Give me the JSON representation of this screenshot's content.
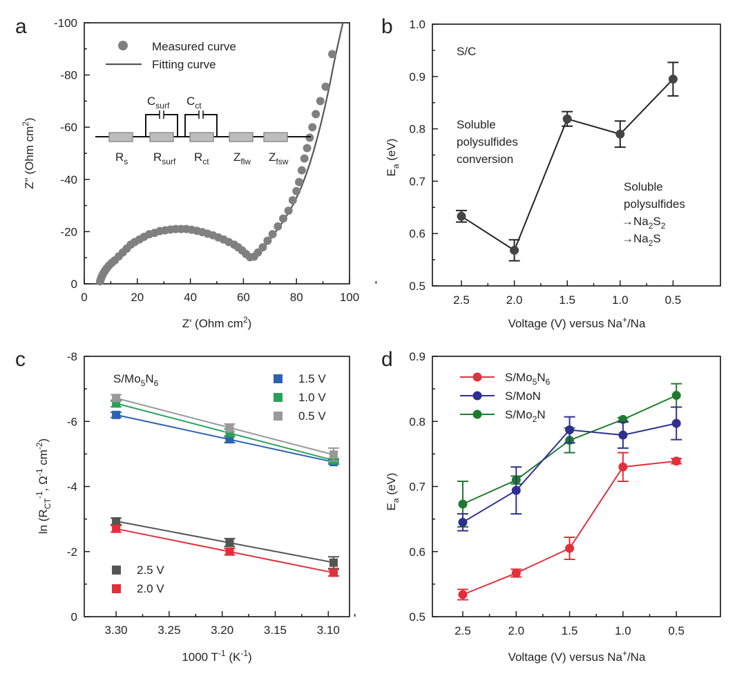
{
  "chart_data": [
    {
      "id": "a",
      "panel_label": "a",
      "type": "scatter",
      "xlabel": "Z' (Ohm cm2)",
      "ylabel": "Z\" (Ohm cm2)",
      "xlim": [
        0,
        100
      ],
      "ylim": [
        0,
        -100
      ],
      "xticks": [
        0,
        20,
        40,
        60,
        80,
        100
      ],
      "yticks": [
        0,
        -20,
        -40,
        -60,
        -80,
        -100
      ],
      "yticklabels": [
        "0",
        "-20",
        "-40",
        "-60",
        "-80",
        "-100"
      ],
      "legend": [
        "Measured curve",
        "Fitting curve"
      ],
      "colors": {
        "points": "#808080",
        "line": "#555555"
      },
      "circuit_labels": {
        "caps": [
          {
            "main": "C",
            "sub": "surf"
          },
          {
            "main": "C",
            "sub": "ct"
          }
        ],
        "elements": [
          {
            "main": "R",
            "sub": "s"
          },
          {
            "main": "R",
            "sub": "surf"
          },
          {
            "main": "R",
            "sub": "ct"
          },
          {
            "main": "Z",
            "sub": "flw"
          },
          {
            "main": "Z",
            "sub": "fsw"
          }
        ]
      },
      "series": [
        {
          "name": "Measured curve",
          "x": [
            6,
            6.3,
            6.7,
            7.2,
            7.8,
            8.5,
            9.3,
            10.3,
            11.5,
            13,
            14.5,
            16,
            17.5,
            19,
            20.8,
            22.5,
            24.5,
            26.5,
            28.5,
            30.5,
            32.5,
            34.5,
            36.5,
            38.5,
            40.5,
            42.5,
            44.5,
            46.5,
            48.5,
            50.5,
            52.5,
            54.5,
            56.5,
            58,
            59.5,
            61,
            62.5,
            64,
            65.5,
            67.3,
            69.1,
            71,
            73,
            75,
            77,
            78.6,
            80,
            81,
            82,
            83,
            84,
            85,
            86,
            87.3,
            89,
            91,
            93.5
          ],
          "y": [
            -1,
            -2,
            -3,
            -4,
            -5,
            -6,
            -7,
            -8,
            -9,
            -10.5,
            -12,
            -13.5,
            -15,
            -16,
            -17,
            -18,
            -19,
            -19.5,
            -20.2,
            -20.5,
            -20.8,
            -21,
            -21,
            -21,
            -20.7,
            -20.3,
            -19.8,
            -19.2,
            -18.6,
            -17.8,
            -17,
            -16,
            -15,
            -14,
            -12.8,
            -11.4,
            -10.2,
            -10.4,
            -12,
            -14,
            -16.5,
            -19,
            -22,
            -25,
            -28,
            -32,
            -35.5,
            -39,
            -43.5,
            -48,
            -52,
            -56,
            -60,
            -65,
            -70,
            -75.5,
            -88
          ]
        },
        {
          "name": "Fitting curve",
          "x": [
            5.5,
            6,
            7,
            8,
            9,
            10,
            12,
            14,
            16,
            18,
            20,
            22,
            24,
            26,
            28,
            30,
            32,
            34,
            36,
            38,
            40,
            42,
            44,
            46,
            48,
            50,
            52,
            54,
            56,
            58,
            60,
            61.5,
            62.8,
            64,
            65.5,
            67,
            69,
            71,
            73,
            75,
            77,
            79,
            80.5,
            82,
            83.5,
            85,
            86.5,
            88,
            89.5,
            91,
            92.5,
            94,
            95.5,
            97.5
          ],
          "y": [
            0,
            -1.5,
            -3,
            -4.5,
            -6,
            -7.5,
            -9.8,
            -11.8,
            -13.6,
            -15.2,
            -16.6,
            -17.8,
            -18.8,
            -19.6,
            -20.2,
            -20.6,
            -20.9,
            -21,
            -21,
            -20.9,
            -20.6,
            -20.2,
            -19.7,
            -19.1,
            -18.4,
            -17.6,
            -16.6,
            -15.5,
            -14.3,
            -12.9,
            -11.3,
            -10.2,
            -9.8,
            -10.3,
            -11.6,
            -13.2,
            -15.6,
            -18.2,
            -21,
            -24,
            -27.3,
            -30.8,
            -34,
            -37.5,
            -41.5,
            -46,
            -51,
            -56.5,
            -62.5,
            -69,
            -76,
            -84,
            -91,
            -100
          ]
        }
      ]
    },
    {
      "id": "b",
      "panel_label": "b",
      "type": "line",
      "xlabel": "Voltage (V) versus Na+/Na",
      "ylabel": "Ea (eV)",
      "categories": [
        "2.5",
        "2.0",
        "1.5",
        "1.0",
        "0.5"
      ],
      "ylim": [
        0.5,
        1.0
      ],
      "yticks": [
        0.5,
        0.6,
        0.7,
        0.8,
        0.9,
        1.0
      ],
      "yticklabels": [
        "0.5",
        "0.6",
        "0.7",
        "0.8",
        "0.9",
        "1.0"
      ],
      "sample_label": "S/C",
      "annotations": {
        "left": [
          "Soluble",
          "polysulfides",
          "conversion"
        ],
        "right": [
          "Soluble",
          "polysulfides"
        ],
        "products": [
          {
            "arrow": "→",
            "parts": [
              {
                "t": "Na"
              },
              {
                "t": "2",
                "sub": true
              },
              {
                "t": "S"
              },
              {
                "t": "2",
                "sub": true
              }
            ]
          },
          {
            "arrow": "→",
            "parts": [
              {
                "t": "Na"
              },
              {
                "t": "2",
                "sub": true
              },
              {
                "t": "S"
              }
            ]
          }
        ]
      },
      "colors": {
        "line": "#222222",
        "marker": "#444444"
      },
      "series": [
        {
          "name": "S/C",
          "values": [
            0.633,
            0.568,
            0.819,
            0.79,
            0.895
          ],
          "errors": [
            0.011,
            0.02,
            0.014,
            0.025,
            0.032
          ]
        }
      ]
    },
    {
      "id": "c",
      "panel_label": "c",
      "type": "scatter",
      "xlabel": "1000 T-1 (K-1)",
      "ylabel": "ln (RCT-1, Ω-1 cm-2)",
      "xlim": [
        3.33,
        3.08
      ],
      "ylim": [
        0,
        -8
      ],
      "xticks": [
        3.3,
        3.25,
        3.2,
        3.15,
        3.1
      ],
      "xticklabels": [
        "3.30",
        "3.25",
        "3.20",
        "3.15",
        "3.10"
      ],
      "yticks": [
        0,
        -2,
        -4,
        -6,
        -8
      ],
      "yticklabels": [
        "0",
        "-2",
        "-4",
        "-6",
        "-8"
      ],
      "sample_label": {
        "parts": [
          {
            "t": "S/Mo"
          },
          {
            "t": "5",
            "sub": true
          },
          {
            "t": "N"
          },
          {
            "t": "6",
            "sub": true
          }
        ]
      },
      "series": [
        {
          "name": "1.5 V",
          "color": "#2b63b0",
          "x": [
            3.3,
            3.193,
            3.095
          ],
          "y": [
            -6.2,
            -5.45,
            -4.75
          ],
          "errors": [
            0.08,
            0.1,
            0.06
          ]
        },
        {
          "name": "1.0 V",
          "color": "#2aa05a",
          "x": [
            3.3,
            3.193,
            3.095
          ],
          "y": [
            -6.55,
            -5.65,
            -4.8
          ],
          "errors": [
            0.1,
            0.12,
            0.06
          ]
        },
        {
          "name": "0.5 V",
          "color": "#999999",
          "x": [
            3.3,
            3.193,
            3.095
          ],
          "y": [
            -6.72,
            -5.8,
            -4.98
          ],
          "errors": [
            0.1,
            0.12,
            0.2
          ]
        },
        {
          "name": "2.5 V",
          "color": "#555555",
          "x": [
            3.3,
            3.193,
            3.095
          ],
          "y": [
            -2.93,
            -2.28,
            -1.66
          ],
          "errors": [
            0.1,
            0.12,
            0.18
          ]
        },
        {
          "name": "2.0 V",
          "color": "#e0303a",
          "x": [
            3.3,
            3.193,
            3.095
          ],
          "y": [
            -2.7,
            -2.0,
            -1.35
          ],
          "errors": [
            0.1,
            0.1,
            0.1
          ]
        }
      ]
    },
    {
      "id": "d",
      "panel_label": "d",
      "type": "line",
      "xlabel": "Voltage (V) versus Na+/Na",
      "ylabel": "Ea (eV)",
      "categories": [
        "2.5",
        "2.0",
        "1.5",
        "1.0",
        "0.5"
      ],
      "ylim": [
        0.5,
        0.9
      ],
      "yticks": [
        0.5,
        0.6,
        0.7,
        0.8,
        0.9
      ],
      "yticklabels": [
        "0.5",
        "0.6",
        "0.7",
        "0.8",
        "0.9"
      ],
      "series": [
        {
          "name": "S/Mo5N6",
          "label_parts": [
            {
              "t": "S/Mo"
            },
            {
              "t": "5",
              "sub": true
            },
            {
              "t": "N"
            },
            {
              "t": "6",
              "sub": true
            }
          ],
          "color": "#e0303a",
          "values": [
            0.534,
            0.567,
            0.605,
            0.73,
            0.739
          ],
          "errors": [
            0.008,
            0.006,
            0.017,
            0.022,
            0.004
          ]
        },
        {
          "name": "S/MoN",
          "label_parts": [
            {
              "t": "S/MoN"
            }
          ],
          "color": "#2e2f8f",
          "values": [
            0.645,
            0.694,
            0.787,
            0.779,
            0.797
          ],
          "errors": [
            0.013,
            0.036,
            0.02,
            0.02,
            0.025
          ]
        },
        {
          "name": "S/Mo2N",
          "label_parts": [
            {
              "t": "S/Mo"
            },
            {
              "t": "2",
              "sub": true
            },
            {
              "t": "N"
            }
          ],
          "color": "#1f7a2e",
          "values": [
            0.673,
            0.71,
            0.771,
            0.803,
            0.84
          ],
          "errors": [
            0.035,
            0.006,
            0.019,
            0.003,
            0.018
          ]
        }
      ]
    }
  ]
}
